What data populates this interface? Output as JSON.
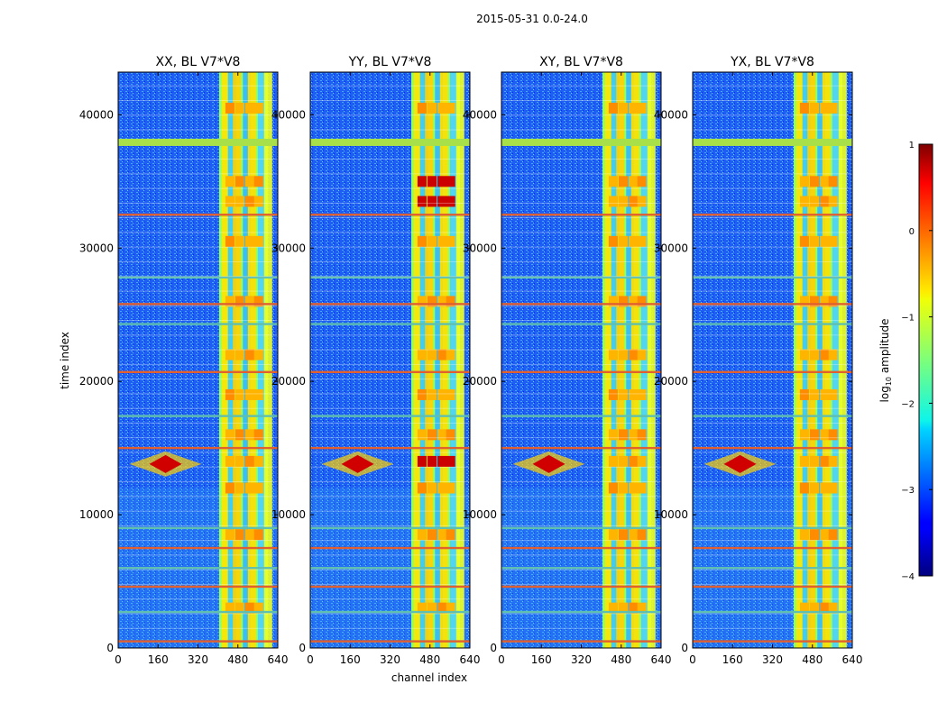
{
  "suptitle": "2015-05-31 0.0-24.0",
  "xlabel": "channel index",
  "ylabel": "time index",
  "colorbar": {
    "label_html": "log<sub>10</sub> amplitude",
    "label_text": "log10 amplitude",
    "ticks": [
      "1",
      "0",
      "−1",
      "−2",
      "−3",
      "−4"
    ],
    "tick_values": [
      1,
      0,
      -1,
      -2,
      -3,
      -4
    ],
    "range": [
      -4,
      1
    ],
    "colormap": "jet"
  },
  "chart_data": {
    "type": "heatmap",
    "x_range": [
      0,
      640
    ],
    "y_range": [
      0,
      43200
    ],
    "x_ticks": [
      0,
      160,
      320,
      480,
      640
    ],
    "y_ticks": [
      0,
      10000,
      20000,
      30000,
      40000
    ],
    "y_tick_labels": [
      "0",
      "10000",
      "20000",
      "30000",
      "40000"
    ],
    "panels": [
      {
        "title": "XX, BL V7*V8"
      },
      {
        "title": "YY, BL V7*V8"
      },
      {
        "title": "XY, BL V7*V8"
      },
      {
        "title": "YX, BL V7*V8"
      }
    ],
    "features": {
      "rfi_band_channels": [
        405,
        600
      ],
      "source_burst": {
        "channel": 190,
        "time": 13800
      },
      "flagged_time_rows": [
        38000,
        32500,
        27800,
        25800,
        24300,
        20700,
        17400,
        15000,
        9000,
        7500,
        6000,
        4600,
        2700,
        500
      ]
    }
  }
}
